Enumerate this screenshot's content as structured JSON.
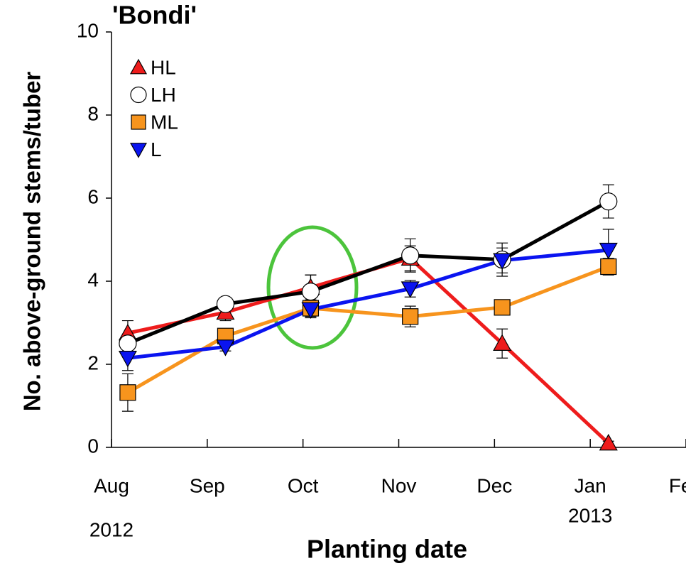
{
  "chart_data": {
    "type": "line",
    "title": "'Bondi'",
    "xlabel": "Planting date",
    "ylabel": "No. above-ground stems/tuber",
    "x": [
      0.17,
      1.19,
      2.08,
      3.12,
      4.08,
      5.19
    ],
    "xlim": [
      0,
      6
    ],
    "xticks": [
      {
        "value": 0,
        "label": "Aug"
      },
      {
        "value": 1,
        "label": "Sep"
      },
      {
        "value": 2,
        "label": "Oct"
      },
      {
        "value": 3,
        "label": "Nov"
      },
      {
        "value": 4,
        "label": "Dec"
      },
      {
        "value": 5,
        "label": "Jan"
      },
      {
        "value": 6,
        "label": "Feb"
      }
    ],
    "annotations": [
      {
        "text": "2012",
        "x": 0
      },
      {
        "text": "2013",
        "x": 5
      }
    ],
    "ylim": [
      0,
      10
    ],
    "yticks": [
      0,
      2,
      4,
      6,
      8,
      10
    ],
    "legend": "upper left",
    "series": [
      {
        "name": "HL",
        "color": "#ee1c1c",
        "marker": "triangle-up",
        "marker_fill": "#ee1c1c",
        "values": [
          2.75,
          3.25,
          3.85,
          4.55,
          2.5,
          0.1
        ],
        "errors": [
          0.3,
          0.2,
          0.3,
          0.3,
          0.35,
          0.05
        ]
      },
      {
        "name": "LH",
        "color": "#000000",
        "marker": "circle",
        "marker_fill": "#ffffff",
        "values": [
          2.5,
          3.45,
          3.75,
          4.62,
          4.52,
          5.92
        ],
        "errors": [
          0.2,
          0.15,
          0.4,
          0.4,
          0.4,
          0.4
        ]
      },
      {
        "name": "ML",
        "color": "#f7941d",
        "marker": "square",
        "marker_fill": "#f7941d",
        "values": [
          1.32,
          2.68,
          3.35,
          3.15,
          3.37,
          4.35
        ],
        "errors": [
          0.45,
          0.15,
          0.2,
          0.25,
          0.1,
          0.2
        ]
      },
      {
        "name": "L",
        "color": "#0a14f0",
        "marker": "triangle-down",
        "marker_fill": "#0a14f0",
        "values": [
          2.15,
          2.42,
          3.32,
          3.82,
          4.5,
          4.75
        ],
        "errors": [
          0.3,
          0.1,
          0.2,
          0.2,
          0.3,
          0.5
        ]
      }
    ]
  }
}
